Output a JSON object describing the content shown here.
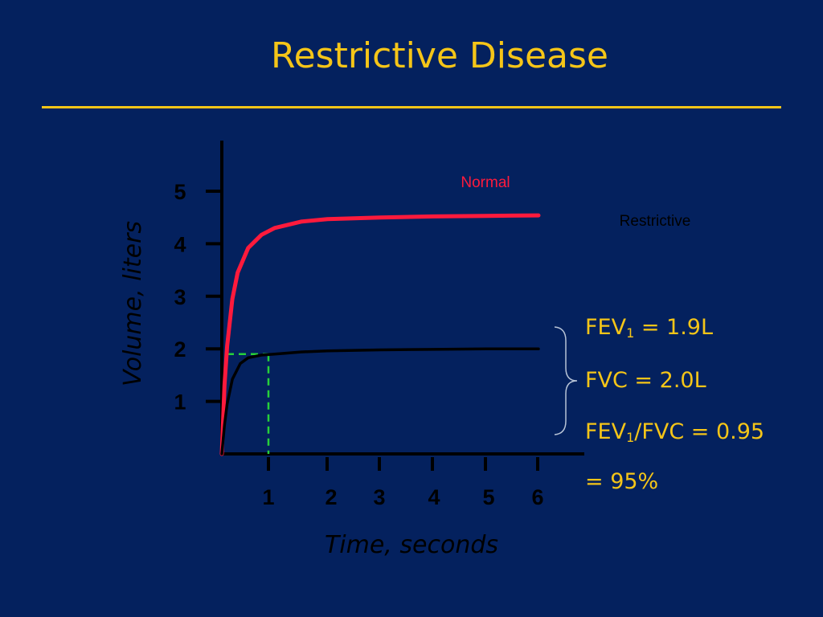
{
  "slide": {
    "title": "Restrictive Disease"
  },
  "colors": {
    "background": "#04215e",
    "accent": "#f5c518",
    "axis": "#000000",
    "normal_curve": "#ff1a3c",
    "restrictive_curve": "#000000",
    "marker": "#27d13a"
  },
  "chart_data": {
    "type": "line",
    "title": "",
    "xlabel": "Time, seconds",
    "ylabel": "Volume, liters",
    "xlim": [
      0,
      6.8
    ],
    "ylim": [
      0,
      5.9
    ],
    "x_ticks": [
      "1",
      "2",
      "3",
      "4",
      "5",
      "6"
    ],
    "y_ticks": [
      "1",
      "2",
      "3",
      "4",
      "5"
    ],
    "grid": false,
    "series": [
      {
        "name": "Normal",
        "color": "#ff1a3c",
        "x": [
          0,
          0.05,
          0.1,
          0.2,
          0.3,
          0.5,
          0.75,
          1,
          1.5,
          2,
          3,
          4,
          5,
          6
        ],
        "y": [
          0,
          1.3,
          2.05,
          2.95,
          3.45,
          3.92,
          4.17,
          4.3,
          4.42,
          4.47,
          4.5,
          4.52,
          4.53,
          4.54
        ]
      },
      {
        "name": "Restrictive",
        "color": "#000000",
        "x": [
          0,
          0.05,
          0.1,
          0.2,
          0.35,
          0.5,
          0.75,
          1,
          1.5,
          2,
          3,
          4,
          5,
          6
        ],
        "y": [
          0,
          0.55,
          0.95,
          1.42,
          1.72,
          1.83,
          1.88,
          1.9,
          1.94,
          1.96,
          1.98,
          1.99,
          2.0,
          2.0
        ]
      }
    ],
    "annotations": [
      {
        "type": "dashed-guide",
        "color": "#27d13a",
        "x": 1,
        "y": 1.9
      }
    ]
  },
  "summary": {
    "fev_prefix": "FEV",
    "fev_sub": "1",
    "fev_value": " = 1.9L",
    "fvc_text": "FVC = 2.0L",
    "ratio_prefix": "FEV",
    "ratio_sub": "1",
    "ratio_value": "/FVC = 0.95",
    "percent_text": "= 95%"
  }
}
